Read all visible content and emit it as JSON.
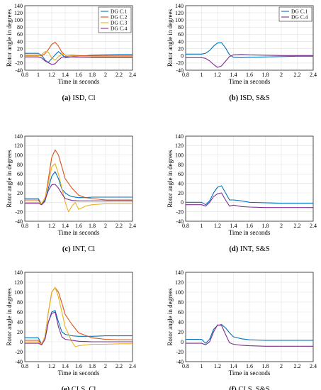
{
  "colors": {
    "c1": "#0072BD",
    "c2": "#D95319",
    "c3": "#EDB120",
    "c4": "#7E2F8E"
  },
  "chart_data": [
    {
      "type": "line",
      "id": "a",
      "caption_letter": "(a)",
      "caption_text": " ISD, Cl",
      "xlabel": "Time in seconds",
      "ylabel": "Rotor angle in degrees",
      "xlim": [
        0.8,
        2.4
      ],
      "ylim": [
        -40,
        140
      ],
      "xticks": [
        0.8,
        1,
        1.2,
        1.4,
        1.6,
        1.8,
        2,
        2.2,
        2.4
      ],
      "yticks": [
        -40,
        -20,
        0,
        20,
        40,
        60,
        80,
        100,
        120,
        140
      ],
      "legend": "top-right",
      "series": [
        {
          "name": "DG C.1",
          "color_key": "c1",
          "x": [
            0.8,
            1.0,
            1.05,
            1.1,
            1.15,
            1.2,
            1.25,
            1.3,
            1.35,
            1.4,
            1.5,
            1.6,
            1.8,
            2.0,
            2.2,
            2.4
          ],
          "y": [
            7,
            7,
            2,
            -12,
            -18,
            -8,
            3,
            12,
            4,
            -5,
            -3,
            -1,
            2,
            3,
            4,
            4
          ]
        },
        {
          "name": "DG C.2",
          "color_key": "c2",
          "x": [
            0.8,
            1.0,
            1.05,
            1.1,
            1.15,
            1.2,
            1.25,
            1.3,
            1.35,
            1.4,
            1.5,
            1.6,
            1.8,
            2.0,
            2.2,
            2.4
          ],
          "y": [
            2,
            2,
            0,
            6,
            18,
            32,
            38,
            27,
            10,
            2,
            2,
            1,
            0,
            0,
            0,
            0
          ]
        },
        {
          "name": "DG C.3",
          "color_key": "c3",
          "x": [
            0.8,
            1.0,
            1.05,
            1.1,
            1.15,
            1.2,
            1.25,
            1.3,
            1.35,
            1.4,
            1.5,
            1.6,
            1.8,
            2.0,
            2.2,
            2.4
          ],
          "y": [
            0,
            0,
            3,
            12,
            10,
            -6,
            -12,
            -2,
            5,
            3,
            0,
            -1,
            -2,
            -2,
            -2,
            -2
          ]
        },
        {
          "name": "DG C.4",
          "color_key": "c4",
          "x": [
            0.8,
            1.0,
            1.05,
            1.1,
            1.15,
            1.2,
            1.25,
            1.3,
            1.35,
            1.4,
            1.5,
            1.6,
            1.8,
            2.0,
            2.2,
            2.4
          ],
          "y": [
            -3,
            -3,
            -6,
            -14,
            -19,
            -24,
            -22,
            -12,
            -4,
            -2,
            -3,
            -4,
            -5,
            -5,
            -5,
            -5
          ]
        }
      ]
    },
    {
      "type": "line",
      "id": "b",
      "caption_letter": "(b)",
      "caption_text": " ISD, S&S",
      "xlabel": "Time in seconds",
      "ylabel": "Rotor angle in degrees",
      "xlim": [
        0.8,
        2.4
      ],
      "ylim": [
        -40,
        140
      ],
      "xticks": [
        0.8,
        1,
        1.2,
        1.4,
        1.6,
        1.8,
        2,
        2.2,
        2.4
      ],
      "yticks": [
        -40,
        -20,
        0,
        20,
        40,
        60,
        80,
        100,
        120,
        140
      ],
      "legend": "top-right",
      "series": [
        {
          "name": "DG C.1",
          "color_key": "c1",
          "x": [
            0.8,
            1.0,
            1.05,
            1.1,
            1.15,
            1.2,
            1.25,
            1.3,
            1.35,
            1.4,
            1.5,
            1.6,
            1.8,
            2.0,
            2.2,
            2.4
          ],
          "y": [
            5,
            5,
            7,
            15,
            27,
            36,
            37,
            22,
            3,
            -4,
            -5,
            -4,
            -3,
            -2,
            -1,
            -1
          ]
        },
        {
          "name": "DG C.4",
          "color_key": "c4",
          "x": [
            0.8,
            1.0,
            1.05,
            1.1,
            1.15,
            1.2,
            1.25,
            1.3,
            1.35,
            1.4,
            1.5,
            1.6,
            1.8,
            2.0,
            2.2,
            2.4
          ],
          "y": [
            -5,
            -5,
            -7,
            -14,
            -24,
            -32,
            -28,
            -15,
            -2,
            3,
            4,
            3,
            2,
            1,
            1,
            1
          ]
        }
      ]
    },
    {
      "type": "line",
      "id": "c",
      "caption_letter": "(c)",
      "caption_text": " INT, Cl",
      "xlabel": "Time in seconds",
      "ylabel": "Rotor angle in degrees",
      "xlim": [
        0.8,
        2.4
      ],
      "ylim": [
        -40,
        140
      ],
      "xticks": [
        0.8,
        1,
        1.2,
        1.4,
        1.6,
        1.8,
        2,
        2.2,
        2.4
      ],
      "yticks": [
        -40,
        -20,
        0,
        20,
        40,
        60,
        80,
        100,
        120,
        140
      ],
      "series": [
        {
          "name": "DG C.1",
          "color_key": "c1",
          "x": [
            0.8,
            1.0,
            1.05,
            1.1,
            1.15,
            1.2,
            1.25,
            1.3,
            1.35,
            1.4,
            1.45,
            1.5,
            1.6,
            1.7,
            1.8,
            2.0,
            2.2,
            2.4
          ],
          "y": [
            8,
            8,
            -5,
            2,
            30,
            55,
            65,
            50,
            28,
            20,
            15,
            12,
            10,
            10,
            11,
            11,
            11,
            11
          ]
        },
        {
          "name": "DG C.2",
          "color_key": "c2",
          "x": [
            0.8,
            1.0,
            1.05,
            1.1,
            1.15,
            1.2,
            1.25,
            1.3,
            1.35,
            1.4,
            1.5,
            1.6,
            1.7,
            1.8,
            2.0,
            2.2,
            2.4
          ],
          "y": [
            5,
            5,
            -5,
            5,
            50,
            95,
            111,
            100,
            75,
            50,
            30,
            15,
            10,
            8,
            5,
            5,
            5
          ]
        },
        {
          "name": "DG C.3",
          "color_key": "c3",
          "x": [
            0.8,
            1.0,
            1.05,
            1.1,
            1.15,
            1.2,
            1.25,
            1.3,
            1.35,
            1.4,
            1.45,
            1.5,
            1.55,
            1.6,
            1.7,
            1.8,
            2.0,
            2.2,
            2.4
          ],
          "y": [
            0,
            0,
            -3,
            10,
            40,
            75,
            82,
            60,
            30,
            0,
            -20,
            -8,
            0,
            -15,
            -8,
            -5,
            -3,
            -3,
            -3
          ]
        },
        {
          "name": "DG C.4",
          "color_key": "c4",
          "x": [
            0.8,
            1.0,
            1.05,
            1.1,
            1.15,
            1.2,
            1.25,
            1.3,
            1.35,
            1.4,
            1.5,
            1.6,
            1.7,
            1.8,
            2.0,
            2.2,
            2.4
          ],
          "y": [
            -2,
            -2,
            -5,
            5,
            25,
            37,
            38,
            30,
            18,
            8,
            4,
            3,
            3,
            3,
            3,
            3,
            3
          ]
        }
      ]
    },
    {
      "type": "line",
      "id": "d",
      "caption_letter": "(d)",
      "caption_text": " INT, S&S",
      "xlabel": "Time in seconds",
      "ylabel": "Rotor angle in degrees",
      "xlim": [
        0.8,
        2.4
      ],
      "ylim": [
        -40,
        140
      ],
      "xticks": [
        0.8,
        1,
        1.2,
        1.4,
        1.6,
        1.8,
        2,
        2.2,
        2.4
      ],
      "yticks": [
        -40,
        -20,
        0,
        20,
        40,
        60,
        80,
        100,
        120,
        140
      ],
      "series": [
        {
          "name": "DG C.1",
          "color_key": "c1",
          "x": [
            0.8,
            1.0,
            1.05,
            1.1,
            1.15,
            1.2,
            1.25,
            1.3,
            1.35,
            1.4,
            1.5,
            1.6,
            1.8,
            2.0,
            2.2,
            2.4
          ],
          "y": [
            0,
            0,
            -5,
            3,
            20,
            32,
            35,
            20,
            5,
            5,
            3,
            0,
            -1,
            -2,
            -2,
            -2
          ]
        },
        {
          "name": "DG C.4",
          "color_key": "c4",
          "x": [
            0.8,
            1.0,
            1.05,
            1.1,
            1.15,
            1.2,
            1.25,
            1.3,
            1.35,
            1.4,
            1.5,
            1.6,
            1.8,
            2.0,
            2.2,
            2.4
          ],
          "y": [
            -5,
            -5,
            -8,
            0,
            12,
            18,
            20,
            5,
            -8,
            -6,
            -9,
            -10,
            -11,
            -11,
            -11,
            -11
          ]
        }
      ]
    },
    {
      "type": "line",
      "id": "e",
      "caption_letter": "(e)",
      "caption_text": " CLS, Cl",
      "xlabel": "Time in seconds",
      "ylabel": "Rotor angle in degrees",
      "xlim": [
        0.8,
        2.4
      ],
      "ylim": [
        -40,
        140
      ],
      "xticks": [
        0.8,
        1,
        1.2,
        1.4,
        1.6,
        1.8,
        2,
        2.2,
        2.4
      ],
      "yticks": [
        -40,
        -20,
        0,
        20,
        40,
        60,
        80,
        100,
        120,
        140
      ],
      "series": [
        {
          "name": "DG C.1",
          "color_key": "c1",
          "x": [
            0.8,
            1.0,
            1.05,
            1.1,
            1.15,
            1.2,
            1.25,
            1.3,
            1.35,
            1.4,
            1.5,
            1.6,
            1.8,
            2.0,
            2.2,
            2.4
          ],
          "y": [
            8,
            8,
            -5,
            5,
            40,
            60,
            63,
            40,
            20,
            15,
            12,
            11,
            11,
            12,
            12,
            12
          ]
        },
        {
          "name": "DG C.2",
          "color_key": "c2",
          "x": [
            0.8,
            1.0,
            1.05,
            1.1,
            1.15,
            1.2,
            1.25,
            1.3,
            1.35,
            1.4,
            1.5,
            1.6,
            1.8,
            2.0,
            2.2,
            2.4
          ],
          "y": [
            3,
            3,
            -5,
            10,
            60,
            100,
            109,
            100,
            78,
            55,
            35,
            18,
            8,
            5,
            4,
            4
          ]
        },
        {
          "name": "DG C.3",
          "color_key": "c3",
          "x": [
            0.8,
            1.0,
            1.05,
            1.1,
            1.15,
            1.2,
            1.25,
            1.3,
            1.35,
            1.4,
            1.5,
            1.55,
            1.6,
            1.8,
            2.0,
            2.2,
            2.4
          ],
          "y": [
            0,
            0,
            -5,
            10,
            60,
            100,
            110,
            90,
            60,
            30,
            0,
            -10,
            -8,
            -5,
            -5,
            -4,
            -4
          ]
        },
        {
          "name": "DG C.4",
          "color_key": "c4",
          "x": [
            0.8,
            1.0,
            1.05,
            1.1,
            1.15,
            1.2,
            1.25,
            1.3,
            1.35,
            1.4,
            1.5,
            1.6,
            1.8,
            2.0,
            2.2,
            2.4
          ],
          "y": [
            -3,
            -3,
            -6,
            5,
            40,
            57,
            60,
            30,
            10,
            5,
            3,
            1,
            0,
            0,
            0,
            0
          ]
        }
      ]
    },
    {
      "type": "line",
      "id": "f",
      "caption_letter": "(f)",
      "caption_text": " CLS, S&S",
      "xlabel": "Time in seconds",
      "ylabel": "Rotor angle in degrees",
      "xlim": [
        0.8,
        2.4
      ],
      "ylim": [
        -40,
        140
      ],
      "xticks": [
        0.8,
        1,
        1.2,
        1.4,
        1.6,
        1.8,
        2,
        2.2,
        2.4
      ],
      "yticks": [
        -40,
        -20,
        0,
        20,
        40,
        60,
        80,
        100,
        120,
        140
      ],
      "series": [
        {
          "name": "DG C.1",
          "color_key": "c1",
          "x": [
            0.8,
            1.0,
            1.05,
            1.1,
            1.15,
            1.2,
            1.25,
            1.3,
            1.35,
            1.4,
            1.5,
            1.6,
            1.8,
            2.0,
            2.2,
            2.4
          ],
          "y": [
            5,
            5,
            -3,
            5,
            25,
            33,
            35,
            28,
            18,
            10,
            6,
            4,
            3,
            3,
            3,
            3
          ]
        },
        {
          "name": "DG C.4",
          "color_key": "c4",
          "x": [
            0.8,
            1.0,
            1.05,
            1.1,
            1.15,
            1.2,
            1.25,
            1.3,
            1.35,
            1.4,
            1.5,
            1.6,
            1.8,
            2.0,
            2.2,
            2.4
          ],
          "y": [
            -3,
            -3,
            -6,
            0,
            20,
            34,
            33,
            15,
            -2,
            -5,
            -7,
            -8,
            -9,
            -9,
            -9,
            -9
          ]
        }
      ]
    }
  ]
}
